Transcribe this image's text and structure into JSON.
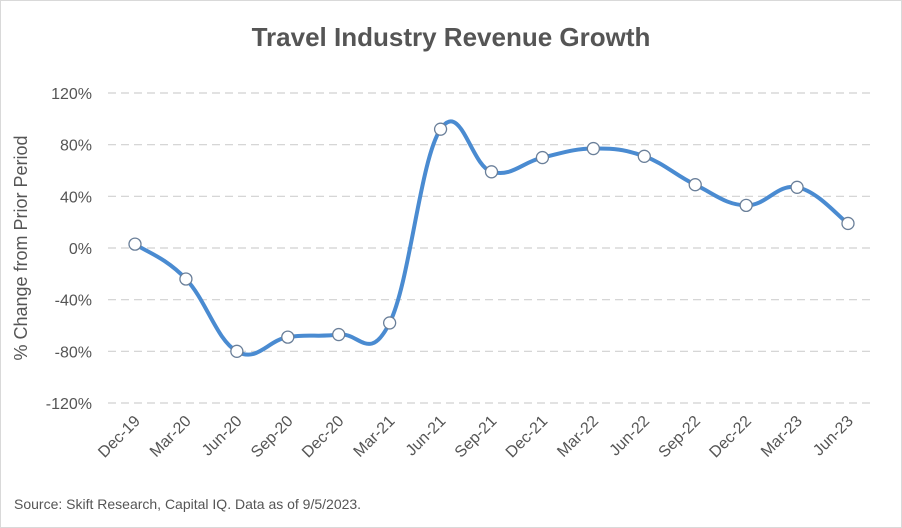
{
  "chart_data": {
    "type": "line",
    "title": "Travel Industry Revenue Growth",
    "ylabel": "% Change from Prior Period",
    "xlabel": "",
    "categories": [
      "Dec-19",
      "Mar-20",
      "Jun-20",
      "Sep-20",
      "Dec-20",
      "Mar-21",
      "Jun-21",
      "Sep-21",
      "Dec-21",
      "Mar-22",
      "Jun-22",
      "Sep-22",
      "Dec-22",
      "Mar-23",
      "Jun-23"
    ],
    "series": [
      {
        "values": [
          3,
          -24,
          -80,
          -69,
          -67,
          -58,
          92,
          59,
          70,
          77,
          71,
          49,
          33,
          47,
          19
        ]
      }
    ],
    "ylim": [
      -120,
      120
    ],
    "yticks": [
      -120,
      -80,
      -40,
      0,
      40,
      80,
      120
    ],
    "ytick_labels": [
      "-120%",
      "-80%",
      "-40%",
      "0%",
      "40%",
      "80%",
      "120%"
    ],
    "grid": "horizontal-dashed",
    "line_color": "#4a8bd1",
    "grid_color": "#d0d0d0",
    "legend": "none"
  },
  "footer": {
    "source": "Source: Skift Research, Capital IQ. Data as of 9/5/2023."
  }
}
